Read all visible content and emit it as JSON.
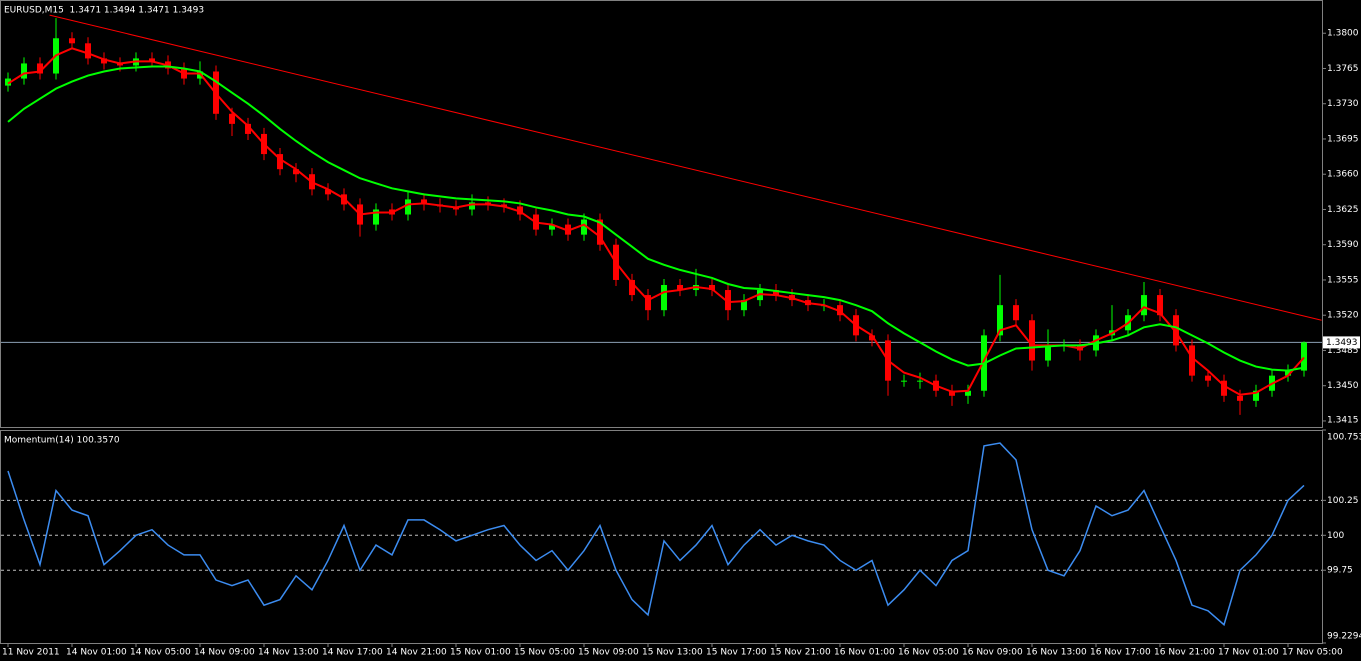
{
  "chart_data": [
    {
      "type": "candlestick",
      "title": "EURUSD,M15  1.3471 1.3494 1.3471 1.3493",
      "categories": [
        "11 Nov 2011",
        null,
        null,
        null,
        "14 Nov 01:00",
        null,
        null,
        null,
        "14 Nov 05:00",
        null,
        null,
        null,
        "14 Nov 09:00",
        null,
        null,
        null,
        "14 Nov 13:00",
        null,
        null,
        null,
        "14 Nov 17:00",
        null,
        null,
        null,
        "14 Nov 21:00",
        null,
        null,
        null,
        "15 Nov 01:00",
        null,
        null,
        null,
        "15 Nov 05:00",
        null,
        null,
        null,
        "15 Nov 09:00",
        null,
        null,
        null,
        "15 Nov 13:00",
        null,
        null,
        null,
        "15 Nov 17:00",
        null,
        null,
        null,
        "15 Nov 21:00",
        null,
        null,
        null,
        "16 Nov 01:00",
        null,
        null,
        null,
        "16 Nov 05:00",
        null,
        null,
        null,
        "16 Nov 09:00",
        null,
        null,
        null,
        "16 Nov 13:00",
        null,
        null,
        null,
        "16 Nov 17:00",
        null,
        null,
        null,
        "16 Nov 21:00",
        null,
        null,
        null,
        "17 Nov 01:00",
        null,
        null,
        null,
        "17 Nov 05:00",
        null
      ],
      "open": [
        1.3748,
        1.3755,
        1.377,
        1.376,
        1.3795,
        1.379,
        1.3775,
        1.377,
        1.3768,
        1.3775,
        1.3772,
        1.3765,
        1.3755,
        1.3762,
        1.372,
        1.371,
        1.37,
        1.368,
        1.3665,
        1.366,
        1.3645,
        1.364,
        1.363,
        1.361,
        1.3625,
        1.362,
        1.3635,
        1.363,
        1.3628,
        1.3625,
        1.3632,
        1.363,
        1.3628,
        1.362,
        1.3605,
        1.361,
        1.36,
        1.3615,
        1.359,
        1.3555,
        1.354,
        1.3525,
        1.355,
        1.3545,
        1.355,
        1.3545,
        1.3525,
        1.3535,
        1.3545,
        1.354,
        1.3535,
        1.353,
        1.353,
        1.352,
        1.35,
        1.3495,
        1.3455,
        1.3455,
        1.3455,
        1.3445,
        1.344,
        1.3445,
        1.35,
        1.353,
        1.3515,
        1.3475,
        1.349,
        1.349,
        1.3485,
        1.35,
        1.3505,
        1.352,
        1.354,
        1.352,
        1.349,
        1.346,
        1.3455,
        1.344,
        1.3435,
        1.3445,
        1.346,
        1.3465
      ],
      "high": [
        1.3761,
        1.3776,
        1.3776,
        1.3815,
        1.3801,
        1.3796,
        1.3781,
        1.3776,
        1.3781,
        1.3781,
        1.3778,
        1.3771,
        1.3772,
        1.3768,
        1.3726,
        1.3716,
        1.3706,
        1.3686,
        1.3671,
        1.3666,
        1.3651,
        1.3646,
        1.3636,
        1.3631,
        1.3631,
        1.3643,
        1.3641,
        1.3636,
        1.3634,
        1.364,
        1.3638,
        1.3636,
        1.3634,
        1.3626,
        1.3616,
        1.3616,
        1.3621,
        1.3621,
        1.3596,
        1.3561,
        1.3546,
        1.3556,
        1.3556,
        1.3566,
        1.3556,
        1.3551,
        1.3541,
        1.3551,
        1.3551,
        1.3546,
        1.3541,
        1.3536,
        1.3536,
        1.3526,
        1.3506,
        1.3501,
        1.3461,
        1.3463,
        1.3461,
        1.3451,
        1.3451,
        1.3506,
        1.356,
        1.3536,
        1.3521,
        1.3506,
        1.3496,
        1.3496,
        1.3506,
        1.353,
        1.3526,
        1.3553,
        1.3546,
        1.3526,
        1.3496,
        1.3466,
        1.3461,
        1.3446,
        1.3451,
        1.3466,
        1.3471,
        1.3494
      ],
      "low": [
        1.3742,
        1.3749,
        1.3754,
        1.3754,
        1.3784,
        1.3769,
        1.3764,
        1.3762,
        1.3762,
        1.3766,
        1.3759,
        1.3749,
        1.3749,
        1.3714,
        1.3698,
        1.3694,
        1.3674,
        1.3659,
        1.3652,
        1.3639,
        1.3634,
        1.3624,
        1.3598,
        1.3604,
        1.3614,
        1.3614,
        1.3624,
        1.3622,
        1.3619,
        1.3619,
        1.3624,
        1.3622,
        1.3614,
        1.3599,
        1.3599,
        1.3594,
        1.3594,
        1.3584,
        1.3549,
        1.3534,
        1.3515,
        1.3519,
        1.3539,
        1.3539,
        1.3539,
        1.3515,
        1.3519,
        1.3529,
        1.3534,
        1.3529,
        1.3524,
        1.3524,
        1.3514,
        1.3494,
        1.3489,
        1.344,
        1.3449,
        1.3447,
        1.3439,
        1.343,
        1.3432,
        1.3439,
        1.3494,
        1.3509,
        1.3465,
        1.3469,
        1.3484,
        1.3475,
        1.3479,
        1.3494,
        1.3499,
        1.3514,
        1.3514,
        1.3484,
        1.3454,
        1.3449,
        1.3434,
        1.3421,
        1.3429,
        1.3439,
        1.3454,
        1.3459
      ],
      "close": [
        1.3755,
        1.377,
        1.376,
        1.3795,
        1.379,
        1.3775,
        1.377,
        1.3768,
        1.3775,
        1.3772,
        1.3765,
        1.3755,
        1.3762,
        1.372,
        1.371,
        1.37,
        1.368,
        1.3665,
        1.366,
        1.3645,
        1.364,
        1.363,
        1.361,
        1.3625,
        1.362,
        1.3635,
        1.363,
        1.3628,
        1.3625,
        1.3632,
        1.363,
        1.3628,
        1.362,
        1.3605,
        1.361,
        1.36,
        1.3615,
        1.359,
        1.3555,
        1.354,
        1.3525,
        1.355,
        1.3545,
        1.355,
        1.3545,
        1.3525,
        1.3535,
        1.3545,
        1.354,
        1.3535,
        1.353,
        1.353,
        1.352,
        1.35,
        1.3495,
        1.3455,
        1.3455,
        1.3455,
        1.3445,
        1.344,
        1.3445,
        1.35,
        1.353,
        1.3515,
        1.3475,
        1.349,
        1.349,
        1.3485,
        1.35,
        1.3505,
        1.352,
        1.354,
        1.352,
        1.349,
        1.346,
        1.3455,
        1.344,
        1.3435,
        1.3445,
        1.346,
        1.3465,
        1.3493
      ],
      "up_color": "#00ff00",
      "down_color": "#ff0000",
      "series": [
        {
          "color": "#ff0000",
          "values": [
            1.375,
            1.376,
            1.3762,
            1.3778,
            1.3785,
            1.378,
            1.3774,
            1.377,
            1.3772,
            1.3772,
            1.3768,
            1.376,
            1.376,
            1.374,
            1.3722,
            1.3708,
            1.369,
            1.3675,
            1.3665,
            1.3652,
            1.3645,
            1.3636,
            1.362,
            1.3622,
            1.3622,
            1.363,
            1.3631,
            1.3629,
            1.3627,
            1.363,
            1.363,
            1.3628,
            1.3623,
            1.3612,
            1.361,
            1.3604,
            1.361,
            1.3598,
            1.3572,
            1.3552,
            1.3535,
            1.3543,
            1.3545,
            1.3548,
            1.3546,
            1.3533,
            1.3534,
            1.3541,
            1.354,
            1.3537,
            1.3532,
            1.353,
            1.3524,
            1.351,
            1.35,
            1.3475,
            1.3463,
            1.3458,
            1.345,
            1.3444,
            1.3445,
            1.3475,
            1.3505,
            1.351,
            1.349,
            1.349,
            1.349,
            1.3487,
            1.3495,
            1.3502,
            1.3512,
            1.3528,
            1.3522,
            1.3503,
            1.3478,
            1.3465,
            1.345,
            1.3441,
            1.3443,
            1.3452,
            1.346,
            1.3478
          ]
        },
        {
          "color": "#00ff00",
          "values": [
            1.3712,
            1.3725,
            1.3735,
            1.3745,
            1.3752,
            1.3758,
            1.3762,
            1.3765,
            1.3766,
            1.3767,
            1.3767,
            1.3765,
            1.3762,
            1.3752,
            1.3741,
            1.373,
            1.3718,
            1.3705,
            1.3693,
            1.3682,
            1.3672,
            1.3664,
            1.3656,
            1.3651,
            1.3646,
            1.3643,
            1.364,
            1.3638,
            1.3636,
            1.3635,
            1.3634,
            1.3633,
            1.3631,
            1.3627,
            1.3624,
            1.362,
            1.3618,
            1.3612,
            1.36,
            1.3588,
            1.3576,
            1.357,
            1.3565,
            1.3561,
            1.3557,
            1.3551,
            1.3547,
            1.3546,
            1.3544,
            1.3542,
            1.354,
            1.3538,
            1.3535,
            1.353,
            1.3524,
            1.3512,
            1.3502,
            1.3493,
            1.3484,
            1.3476,
            1.347,
            1.3472,
            1.348,
            1.3487,
            1.3488,
            1.3489,
            1.349,
            1.349,
            1.3492,
            1.3495,
            1.35,
            1.3508,
            1.3511,
            1.3508,
            1.35,
            1.3492,
            1.3483,
            1.3475,
            1.3469,
            1.3466,
            1.3465,
            1.3468
          ]
        }
      ],
      "trendline": {
        "color": "#ff0000",
        "x": [
          2.6,
          82.1
        ],
        "values": [
          1.3818,
          1.3515
        ]
      },
      "current_price": {
        "value": 1.3493,
        "label": "1.3493"
      },
      "ylim": [
        1.3409,
        1.3833
      ],
      "yticks": [
        {
          "value": 1.38,
          "label": "1.3800"
        },
        1.3765,
        {
          "value": 1.373,
          "label": "1.3730"
        },
        1.3695,
        {
          "value": 1.366,
          "label": "1.3660"
        },
        1.3625,
        {
          "value": 1.359,
          "label": "1.3590"
        },
        1.3555,
        {
          "value": 1.352,
          "label": "1.3520"
        },
        1.3485,
        {
          "value": 1.345,
          "label": "1.3450"
        },
        1.3415
      ]
    },
    {
      "type": "line",
      "title": "Momentum(14) 100.3570",
      "color": "#3c8cf0",
      "values": [
        100.46,
        100.11,
        99.79,
        100.32,
        100.18,
        100.14,
        99.79,
        99.89,
        100,
        100.04,
        99.93,
        99.86,
        99.86,
        99.68,
        99.64,
        99.68,
        99.5,
        99.54,
        99.71,
        99.61,
        99.82,
        100.07,
        99.75,
        99.93,
        99.86,
        100.11,
        100.11,
        100.04,
        99.96,
        100,
        100.04,
        100.07,
        99.93,
        99.82,
        99.89,
        99.75,
        99.89,
        100.07,
        99.75,
        99.54,
        99.43,
        99.96,
        99.82,
        99.93,
        100.07,
        99.79,
        99.93,
        100.04,
        99.93,
        100,
        99.96,
        99.93,
        99.82,
        99.75,
        99.82,
        99.5,
        99.61,
        99.75,
        99.64,
        99.82,
        99.89,
        100.64,
        100.66,
        100.54,
        100.04,
        99.75,
        99.71,
        99.89,
        100.21,
        100.14,
        100.18,
        100.32,
        100.07,
        99.82,
        99.5,
        99.46,
        99.36,
        99.75,
        99.86,
        100,
        100.25,
        100.357
      ],
      "ylim": [
        99.2294,
        100.7534
      ],
      "yticks": [
        99.2294,
        99.75,
        100,
        100.25,
        100.7534
      ]
    }
  ]
}
